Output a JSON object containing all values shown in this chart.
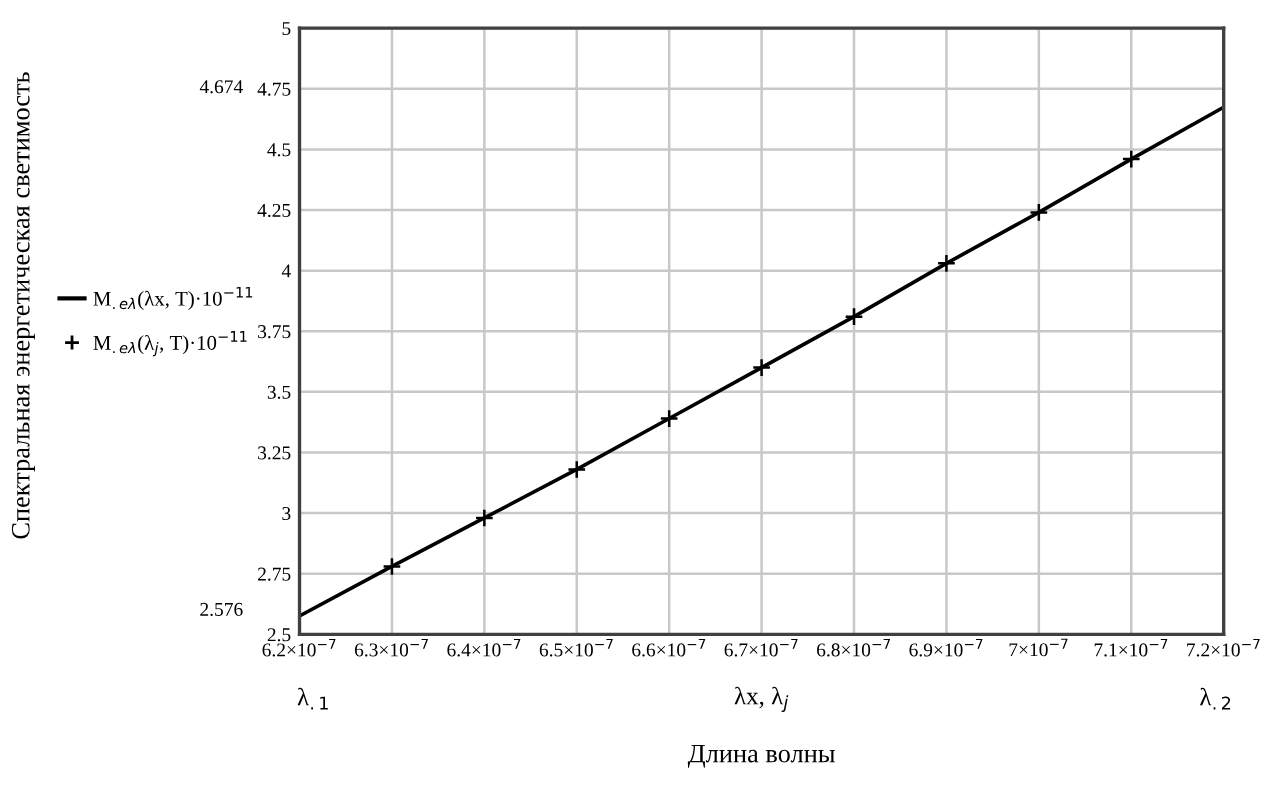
{
  "chart_data": {
    "type": "line",
    "xlabel": "Длина волны",
    "xlim": [
      6.2e-07,
      7.2e-07
    ],
    "ylim": [
      2.5,
      5
    ],
    "xticks": [
      {
        "value": 6.2e-07,
        "label": "6.2×10$^{−7}$"
      },
      {
        "value": 6.3e-07,
        "label": "6.3×10$^{−7}$"
      },
      {
        "value": 6.4e-07,
        "label": "6.4×10$^{−7}$"
      },
      {
        "value": 6.5e-07,
        "label": "6.5×10$^{−7}$"
      },
      {
        "value": 6.6e-07,
        "label": "6.6×10$^{−7}$"
      },
      {
        "value": 6.7e-07,
        "label": "6.7×10$^{−7}$"
      },
      {
        "value": 6.8e-07,
        "label": "6.8×10$^{−7}$"
      },
      {
        "value": 6.9e-07,
        "label": "6.9×10$^{−7}$"
      },
      {
        "value": 7e-07,
        "label": "7×10$^{−7}$"
      },
      {
        "value": 7.1e-07,
        "label": "7.1×10$^{−7}$"
      },
      {
        "value": 7.2e-07,
        "label": "7.2×10$^{−7}$"
      }
    ],
    "yticks": [
      2.5,
      2.75,
      3,
      3.25,
      3.5,
      3.75,
      4,
      4.25,
      4.5,
      4.75,
      5
    ],
    "grid": true,
    "legend": "left",
    "series": [
      {
        "name": "M$_{.eλ}$(λx, T)·10$^{−11}$",
        "color": "#000000",
        "line_style": "solid",
        "marker": "none",
        "x": [
          6.2e-07,
          6.3e-07,
          6.4e-07,
          6.5e-07,
          6.6e-07,
          6.7e-07,
          6.8e-07,
          6.9e-07,
          7e-07,
          7.1e-07,
          7.2e-07
        ],
        "values": [
          2.576,
          2.78,
          2.98,
          3.18,
          3.39,
          3.6,
          3.81,
          4.03,
          4.24,
          4.46,
          4.674
        ]
      },
      {
        "name": "M$_{.eλ}$(λ$_{j}$, T)·10$^{−11}$",
        "type": "scatter",
        "color": "#000000",
        "marker": "cross",
        "x": [
          6.3e-07,
          6.4e-07,
          6.5e-07,
          6.6e-07,
          6.7e-07,
          6.8e-07,
          6.9e-07,
          7e-07,
          7.1e-07
        ],
        "values": [
          2.78,
          2.98,
          3.18,
          3.39,
          3.6,
          3.81,
          4.03,
          4.24,
          4.46
        ]
      }
    ],
    "annotations": [
      "Спектральная энергетическая светимость",
      "4.674",
      "2.576",
      "λ$_{.1}$",
      "λx, λ$_{j}$",
      "λ$_{.2}$"
    ]
  }
}
